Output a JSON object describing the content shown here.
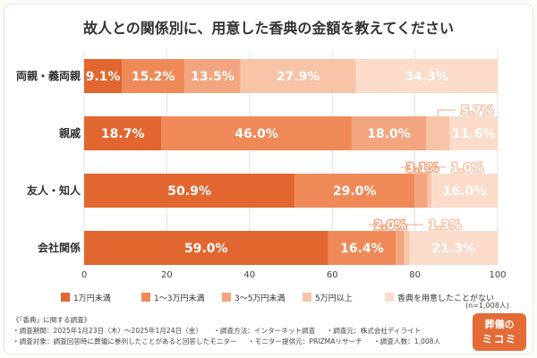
{
  "chart_data": {
    "type": "bar",
    "orientation": "horizontal",
    "stacked": true,
    "title": "故人との関係別に、用意した香典の金額を教えてください",
    "categories": [
      "両親・義両親",
      "親戚",
      "友人・知人",
      "会社関係"
    ],
    "series": [
      {
        "name": "1万円未満",
        "color": "#e2662f",
        "values": [
          9.1,
          18.7,
          50.9,
          59.0
        ],
        "labels": [
          "9.1%",
          "18.7%",
          "50.9%",
          "59.0%"
        ]
      },
      {
        "name": "1〜3万円未満",
        "color": "#ef8a58",
        "values": [
          15.2,
          46.0,
          29.0,
          16.4
        ],
        "labels": [
          "15.2%",
          "46.0%",
          "29.0%",
          "16.4%"
        ]
      },
      {
        "name": "3〜5万円未満",
        "color": "#f3a57f",
        "values": [
          13.5,
          18.0,
          3.1,
          2.0
        ],
        "labels": [
          "13.5%",
          "18.0%",
          "3.1%",
          "2.0%"
        ]
      },
      {
        "name": "5万円以上",
        "color": "#f8c4a8",
        "values": [
          27.9,
          5.7,
          1.0,
          1.3
        ],
        "labels": [
          "27.9%",
          "5.7%",
          "1.0%",
          "1.3%"
        ]
      },
      {
        "name": "香典を用意したことがない",
        "color": "#fbdccb",
        "values": [
          34.3,
          11.6,
          16.0,
          21.3
        ],
        "labels": [
          "34.3%",
          "11.6%",
          "16.0%",
          "21.3%"
        ]
      }
    ],
    "xlim": [
      0,
      100
    ],
    "xticks": [
      "0",
      "20",
      "40",
      "60",
      "80",
      "100"
    ],
    "grid": true,
    "legend_position": "bottom"
  },
  "sample_size": "(n=1,008人)",
  "footer": {
    "heading": "《「香典」に関する調査》",
    "period": "・調査期間：2025年1月23日（木）～2025年1月24日（金）",
    "method": "・調査方法：インターネット調査",
    "organizer": "・調査元：株式会社ディライト",
    "target": "・調査対象：調査回答時に葬儀に参列したことがあると回答したモニター",
    "provider": "・モニター提供元：PRIZMAリサーチ",
    "respondents": "・調査人数：1,008人"
  },
  "logo": {
    "line1": "葬儀の",
    "line2": "ミコミ"
  }
}
